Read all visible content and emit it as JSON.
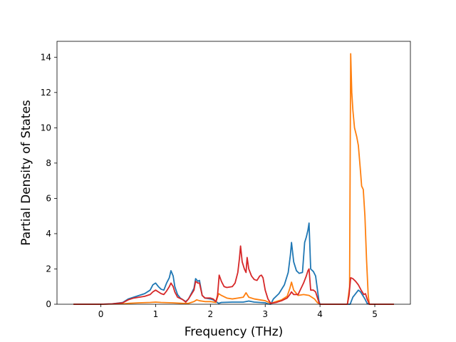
{
  "chart_data": {
    "type": "line",
    "title": "",
    "xlabel": "Frequency (THz)",
    "ylabel": "Partial Density of States",
    "xlim": [
      -0.8,
      5.65
    ],
    "ylim": [
      0,
      14.9
    ],
    "xticks": [
      0,
      1,
      2,
      3,
      4,
      5
    ],
    "yticks": [
      0,
      2,
      4,
      6,
      8,
      10,
      12,
      14
    ],
    "grid": false,
    "legend": "none",
    "series": [
      {
        "color": "#1f77b4",
        "points": [
          [
            -0.5,
            0
          ],
          [
            0.0,
            0
          ],
          [
            0.2,
            0.02
          ],
          [
            0.4,
            0.1
          ],
          [
            0.5,
            0.3
          ],
          [
            0.6,
            0.4
          ],
          [
            0.7,
            0.5
          ],
          [
            0.8,
            0.6
          ],
          [
            0.9,
            0.8
          ],
          [
            0.95,
            1.1
          ],
          [
            1.0,
            1.2
          ],
          [
            1.05,
            1.0
          ],
          [
            1.1,
            0.85
          ],
          [
            1.15,
            0.8
          ],
          [
            1.2,
            1.2
          ],
          [
            1.25,
            1.5
          ],
          [
            1.28,
            1.9
          ],
          [
            1.32,
            1.6
          ],
          [
            1.35,
            1.0
          ],
          [
            1.4,
            0.55
          ],
          [
            1.45,
            0.35
          ],
          [
            1.5,
            0.25
          ],
          [
            1.55,
            0.15
          ],
          [
            1.6,
            0.3
          ],
          [
            1.65,
            0.6
          ],
          [
            1.7,
            0.9
          ],
          [
            1.73,
            1.45
          ],
          [
            1.77,
            1.3
          ],
          [
            1.8,
            1.35
          ],
          [
            1.85,
            0.5
          ],
          [
            1.9,
            0.35
          ],
          [
            2.0,
            0.3
          ],
          [
            2.05,
            0.25
          ],
          [
            2.1,
            0.15
          ],
          [
            2.15,
            0.05
          ],
          [
            2.2,
            0.1
          ],
          [
            2.4,
            0.12
          ],
          [
            2.6,
            0.12
          ],
          [
            2.7,
            0.18
          ],
          [
            2.8,
            0.12
          ],
          [
            2.9,
            0.1
          ],
          [
            3.0,
            0.08
          ],
          [
            3.05,
            0.02
          ],
          [
            3.1,
            0.0
          ],
          [
            3.15,
            0.3
          ],
          [
            3.25,
            0.6
          ],
          [
            3.35,
            1.1
          ],
          [
            3.42,
            1.8
          ],
          [
            3.46,
            2.8
          ],
          [
            3.48,
            3.5
          ],
          [
            3.52,
            2.4
          ],
          [
            3.57,
            1.9
          ],
          [
            3.62,
            1.75
          ],
          [
            3.68,
            1.8
          ],
          [
            3.72,
            3.5
          ],
          [
            3.75,
            3.8
          ],
          [
            3.78,
            4.2
          ],
          [
            3.8,
            4.6
          ],
          [
            3.83,
            2.0
          ],
          [
            3.88,
            1.85
          ],
          [
            3.92,
            1.6
          ],
          [
            3.95,
            0.9
          ],
          [
            3.98,
            0.2
          ],
          [
            4.0,
            0
          ],
          [
            4.55,
            0
          ],
          [
            4.6,
            0.4
          ],
          [
            4.65,
            0.6
          ],
          [
            4.7,
            0.8
          ],
          [
            4.74,
            0.7
          ],
          [
            4.78,
            0.5
          ],
          [
            4.82,
            0.3
          ],
          [
            4.86,
            0.05
          ],
          [
            4.9,
            0
          ],
          [
            5.35,
            0
          ]
        ]
      },
      {
        "color": "#ff7f0e",
        "points": [
          [
            -0.5,
            0
          ],
          [
            0.0,
            0
          ],
          [
            0.4,
            0.02
          ],
          [
            0.5,
            0.05
          ],
          [
            0.7,
            0.08
          ],
          [
            0.9,
            0.1
          ],
          [
            1.0,
            0.12
          ],
          [
            1.1,
            0.1
          ],
          [
            1.3,
            0.08
          ],
          [
            1.5,
            0.05
          ],
          [
            1.6,
            0.05
          ],
          [
            1.7,
            0.15
          ],
          [
            1.75,
            0.25
          ],
          [
            1.8,
            0.2
          ],
          [
            1.9,
            0.15
          ],
          [
            2.0,
            0.15
          ],
          [
            2.1,
            0.1
          ],
          [
            2.15,
            0.6
          ],
          [
            2.2,
            0.5
          ],
          [
            2.3,
            0.35
          ],
          [
            2.4,
            0.3
          ],
          [
            2.5,
            0.35
          ],
          [
            2.6,
            0.4
          ],
          [
            2.65,
            0.65
          ],
          [
            2.7,
            0.4
          ],
          [
            2.8,
            0.3
          ],
          [
            2.9,
            0.25
          ],
          [
            3.0,
            0.2
          ],
          [
            3.1,
            0.05
          ],
          [
            3.2,
            0.15
          ],
          [
            3.3,
            0.25
          ],
          [
            3.4,
            0.45
          ],
          [
            3.45,
            0.9
          ],
          [
            3.48,
            1.25
          ],
          [
            3.52,
            0.8
          ],
          [
            3.6,
            0.5
          ],
          [
            3.7,
            0.55
          ],
          [
            3.8,
            0.5
          ],
          [
            3.9,
            0.3
          ],
          [
            3.95,
            0.1
          ],
          [
            4.0,
            0
          ],
          [
            4.5,
            0
          ],
          [
            4.54,
            1.0
          ],
          [
            4.56,
            14.2
          ],
          [
            4.58,
            12.0
          ],
          [
            4.6,
            11.0
          ],
          [
            4.63,
            10.0
          ],
          [
            4.67,
            9.5
          ],
          [
            4.7,
            9.0
          ],
          [
            4.74,
            7.5
          ],
          [
            4.76,
            6.7
          ],
          [
            4.79,
            6.5
          ],
          [
            4.82,
            5.0
          ],
          [
            4.85,
            2.5
          ],
          [
            4.88,
            0.5
          ],
          [
            4.9,
            0
          ],
          [
            5.35,
            0
          ]
        ]
      },
      {
        "color": "#d62728",
        "points": [
          [
            -0.5,
            0
          ],
          [
            0.0,
            0
          ],
          [
            0.2,
            0.02
          ],
          [
            0.4,
            0.08
          ],
          [
            0.5,
            0.25
          ],
          [
            0.6,
            0.35
          ],
          [
            0.7,
            0.4
          ],
          [
            0.8,
            0.45
          ],
          [
            0.9,
            0.55
          ],
          [
            0.95,
            0.7
          ],
          [
            1.0,
            0.8
          ],
          [
            1.05,
            0.7
          ],
          [
            1.1,
            0.6
          ],
          [
            1.15,
            0.55
          ],
          [
            1.2,
            0.75
          ],
          [
            1.25,
            1.0
          ],
          [
            1.28,
            1.2
          ],
          [
            1.32,
            1.0
          ],
          [
            1.35,
            0.7
          ],
          [
            1.4,
            0.4
          ],
          [
            1.5,
            0.25
          ],
          [
            1.55,
            0.12
          ],
          [
            1.6,
            0.3
          ],
          [
            1.65,
            0.55
          ],
          [
            1.7,
            0.8
          ],
          [
            1.73,
            1.3
          ],
          [
            1.77,
            1.2
          ],
          [
            1.8,
            1.2
          ],
          [
            1.85,
            0.5
          ],
          [
            1.9,
            0.35
          ],
          [
            2.0,
            0.35
          ],
          [
            2.05,
            0.3
          ],
          [
            2.1,
            0.15
          ],
          [
            2.13,
            0.5
          ],
          [
            2.16,
            1.65
          ],
          [
            2.2,
            1.3
          ],
          [
            2.25,
            1.0
          ],
          [
            2.3,
            0.95
          ],
          [
            2.4,
            1.0
          ],
          [
            2.45,
            1.2
          ],
          [
            2.5,
            1.8
          ],
          [
            2.53,
            2.6
          ],
          [
            2.55,
            3.3
          ],
          [
            2.58,
            2.4
          ],
          [
            2.62,
            2.0
          ],
          [
            2.65,
            1.8
          ],
          [
            2.67,
            2.65
          ],
          [
            2.7,
            2.0
          ],
          [
            2.75,
            1.6
          ],
          [
            2.8,
            1.4
          ],
          [
            2.85,
            1.35
          ],
          [
            2.9,
            1.6
          ],
          [
            2.93,
            1.65
          ],
          [
            2.96,
            1.5
          ],
          [
            3.0,
            0.8
          ],
          [
            3.05,
            0.3
          ],
          [
            3.1,
            0.05
          ],
          [
            3.2,
            0.1
          ],
          [
            3.3,
            0.2
          ],
          [
            3.4,
            0.35
          ],
          [
            3.45,
            0.55
          ],
          [
            3.48,
            0.7
          ],
          [
            3.52,
            0.55
          ],
          [
            3.6,
            0.55
          ],
          [
            3.7,
            1.2
          ],
          [
            3.75,
            1.6
          ],
          [
            3.78,
            1.9
          ],
          [
            3.8,
            2.0
          ],
          [
            3.83,
            0.8
          ],
          [
            3.88,
            0.8
          ],
          [
            3.92,
            0.7
          ],
          [
            3.95,
            0.4
          ],
          [
            3.98,
            0.1
          ],
          [
            4.0,
            0
          ],
          [
            4.5,
            0
          ],
          [
            4.53,
            0.5
          ],
          [
            4.56,
            1.5
          ],
          [
            4.6,
            1.45
          ],
          [
            4.65,
            1.3
          ],
          [
            4.7,
            1.1
          ],
          [
            4.75,
            0.8
          ],
          [
            4.8,
            0.55
          ],
          [
            4.83,
            0.6
          ],
          [
            4.86,
            0.3
          ],
          [
            4.9,
            0
          ],
          [
            5.35,
            0
          ]
        ]
      }
    ]
  }
}
